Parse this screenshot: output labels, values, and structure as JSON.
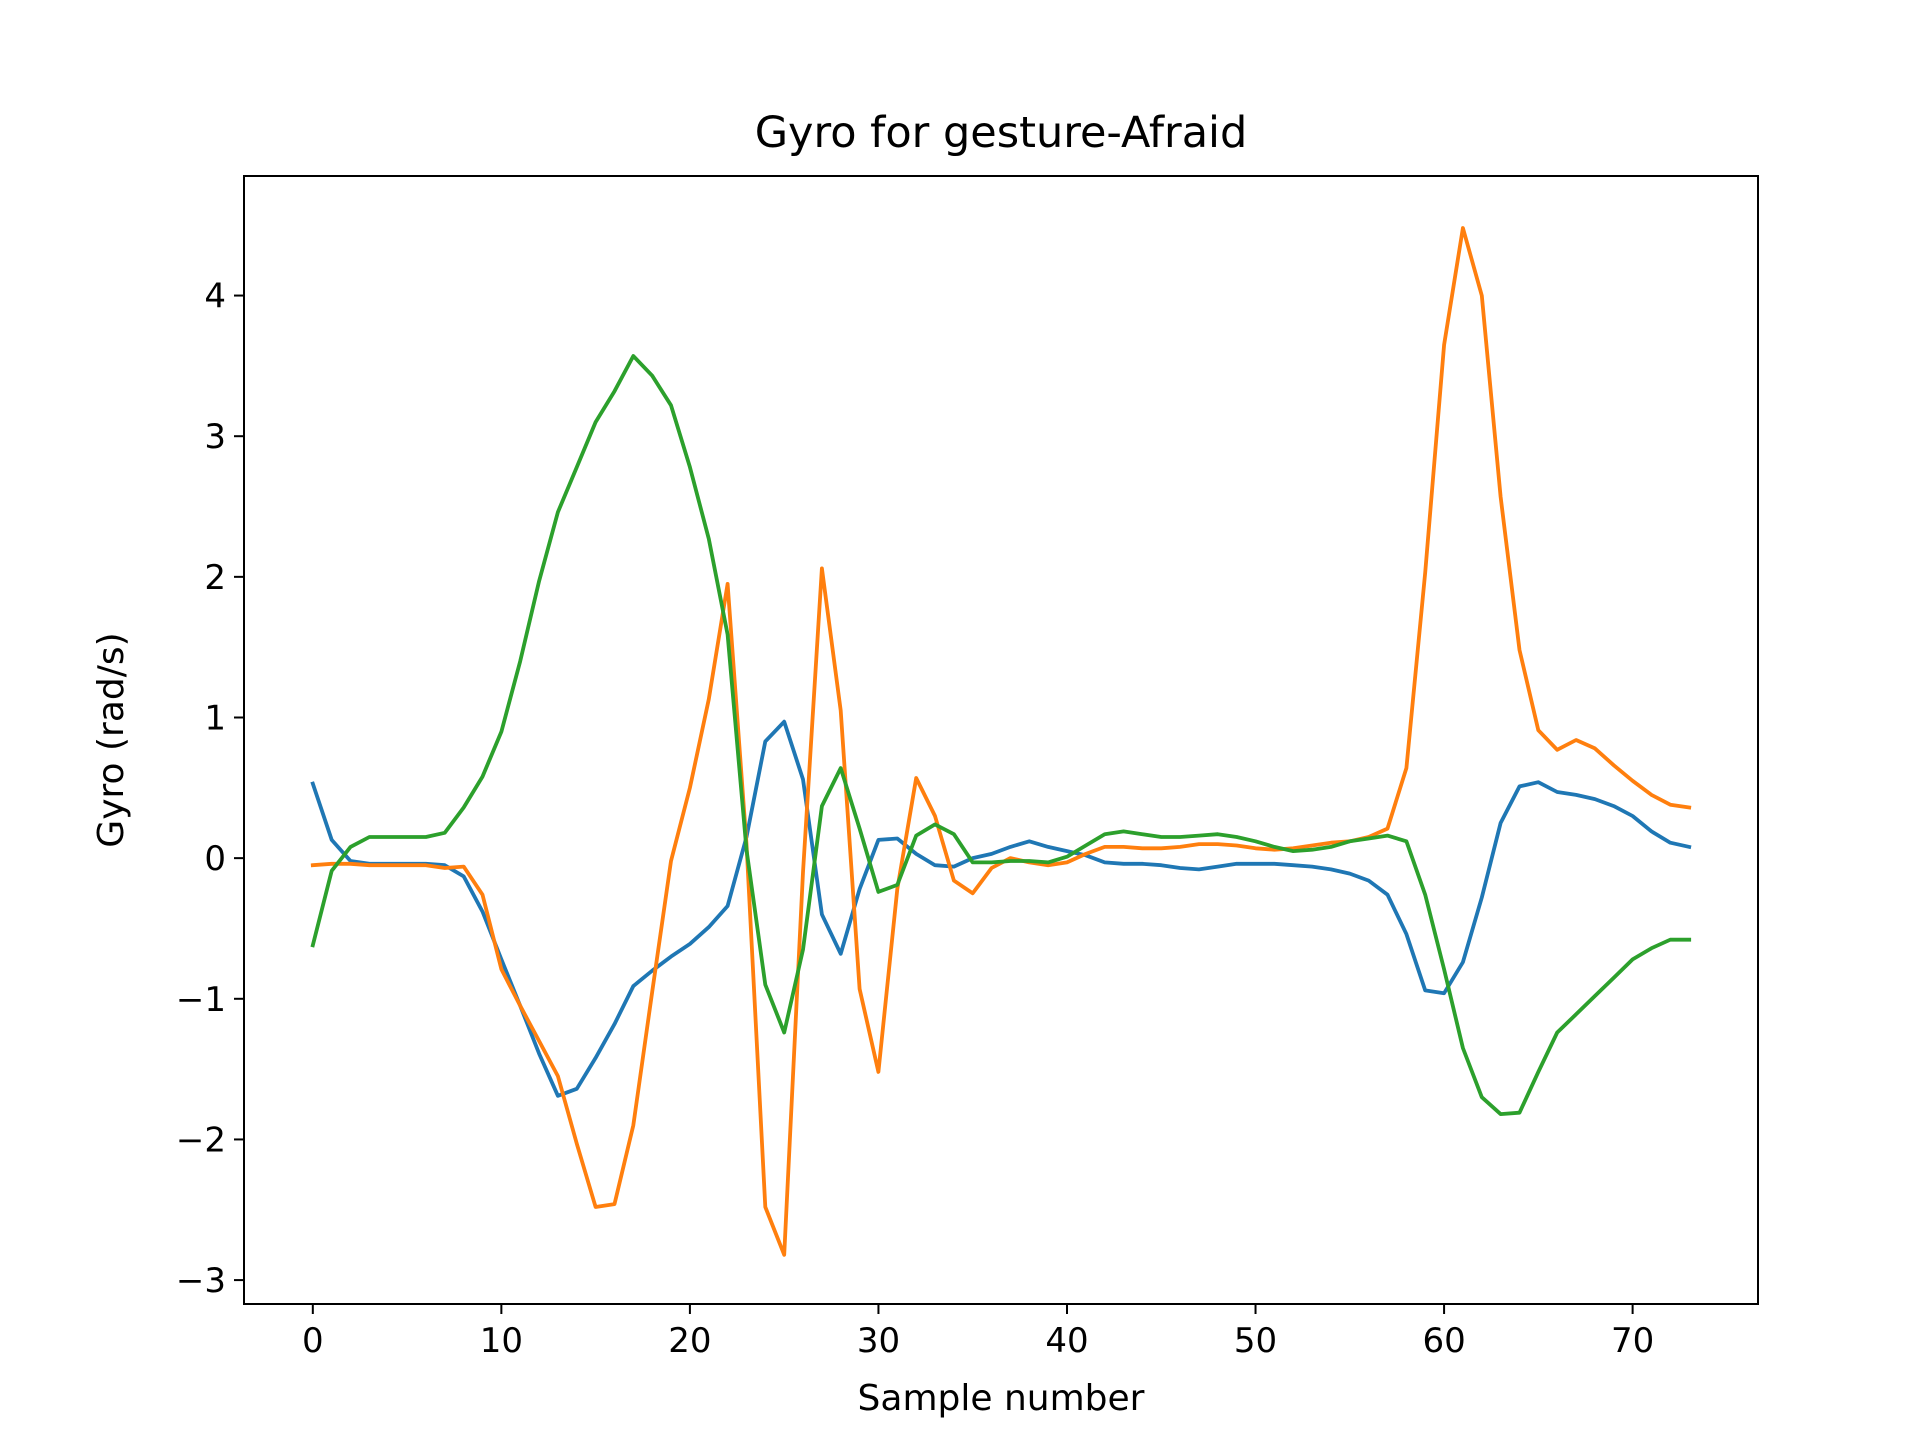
{
  "chart_data": {
    "type": "line",
    "title": "Gyro for gesture-Afraid",
    "xlabel": "Sample number",
    "ylabel": "Gyro  (rad/s)",
    "xlim": [
      -3.65,
      76.65
    ],
    "ylim": [
      -3.17,
      4.85
    ],
    "xticks": [
      0,
      10,
      20,
      30,
      40,
      50,
      60,
      70
    ],
    "xtick_labels": [
      "0",
      "10",
      "20",
      "30",
      "40",
      "50",
      "60",
      "70"
    ],
    "yticks": [
      -3,
      -2,
      -1,
      0,
      1,
      2,
      3,
      4
    ],
    "ytick_labels": [
      "−3",
      "−2",
      "−1",
      "0",
      "1",
      "2",
      "3",
      "4"
    ],
    "grid": false,
    "x": [
      0,
      1,
      2,
      3,
      4,
      5,
      6,
      7,
      8,
      9,
      10,
      11,
      12,
      13,
      14,
      15,
      16,
      17,
      18,
      19,
      20,
      21,
      22,
      23,
      24,
      25,
      26,
      27,
      28,
      29,
      30,
      31,
      32,
      33,
      34,
      35,
      36,
      37,
      38,
      39,
      40,
      41,
      42,
      43,
      44,
      45,
      46,
      47,
      48,
      49,
      50,
      51,
      52,
      53,
      54,
      55,
      56,
      57,
      58,
      59,
      60,
      61,
      62,
      63,
      64,
      65,
      66,
      67,
      68,
      69,
      70,
      71,
      72,
      73
    ],
    "series": [
      {
        "color": "#1f77b4",
        "values": [
          0.53,
          0.13,
          -0.02,
          -0.04,
          -0.04,
          -0.04,
          -0.04,
          -0.05,
          -0.13,
          -0.38,
          -0.72,
          -1.05,
          -1.39,
          -1.69,
          -1.64,
          -1.42,
          -1.18,
          -0.91,
          -0.8,
          -0.7,
          -0.61,
          -0.49,
          -0.34,
          0.15,
          0.83,
          0.97,
          0.56,
          -0.4,
          -0.68,
          -0.22,
          0.13,
          0.14,
          0.03,
          -0.05,
          -0.06,
          0.0,
          0.03,
          0.08,
          0.12,
          0.08,
          0.05,
          0.02,
          -0.03,
          -0.04,
          -0.04,
          -0.05,
          -0.07,
          -0.08,
          -0.06,
          -0.04,
          -0.04,
          -0.04,
          -0.05,
          -0.06,
          -0.08,
          -0.11,
          -0.16,
          -0.26,
          -0.54,
          -0.94,
          -0.96,
          -0.74,
          -0.28,
          0.25,
          0.51,
          0.54,
          0.47,
          0.45,
          0.42,
          0.37,
          0.3,
          0.19,
          0.11,
          0.08
        ]
      },
      {
        "color": "#ff7f0e",
        "values": [
          -0.05,
          -0.04,
          -0.04,
          -0.05,
          -0.05,
          -0.05,
          -0.05,
          -0.07,
          -0.06,
          -0.26,
          -0.79,
          -1.05,
          -1.3,
          -1.55,
          -2.03,
          -2.48,
          -2.46,
          -1.9,
          -0.95,
          -0.02,
          0.5,
          1.13,
          1.95,
          0.1,
          -2.48,
          -2.82,
          -0.1,
          2.06,
          1.05,
          -0.93,
          -1.52,
          -0.22,
          0.57,
          0.3,
          -0.16,
          -0.25,
          -0.07,
          0.0,
          -0.03,
          -0.05,
          -0.03,
          0.03,
          0.08,
          0.08,
          0.07,
          0.07,
          0.08,
          0.1,
          0.1,
          0.09,
          0.07,
          0.06,
          0.07,
          0.09,
          0.11,
          0.12,
          0.15,
          0.21,
          0.64,
          2.03,
          3.65,
          4.48,
          4.0,
          2.57,
          1.48,
          0.91,
          0.77,
          0.84,
          0.78,
          0.66,
          0.55,
          0.45,
          0.38,
          0.36
        ]
      },
      {
        "color": "#2ca02c",
        "values": [
          -0.62,
          -0.09,
          0.08,
          0.15,
          0.15,
          0.15,
          0.15,
          0.18,
          0.36,
          0.58,
          0.9,
          1.4,
          1.97,
          2.46,
          2.78,
          3.1,
          3.32,
          3.57,
          3.43,
          3.22,
          2.78,
          2.27,
          1.59,
          0.06,
          -0.9,
          -1.24,
          -0.65,
          0.37,
          0.64,
          0.21,
          -0.24,
          -0.19,
          0.16,
          0.24,
          0.17,
          -0.03,
          -0.03,
          -0.02,
          -0.02,
          -0.03,
          0.01,
          0.09,
          0.17,
          0.19,
          0.17,
          0.15,
          0.15,
          0.16,
          0.17,
          0.15,
          0.12,
          0.08,
          0.05,
          0.06,
          0.08,
          0.12,
          0.14,
          0.16,
          0.12,
          -0.26,
          -0.79,
          -1.35,
          -1.7,
          -1.82,
          -1.81,
          -1.52,
          -1.24,
          -1.11,
          -0.98,
          -0.85,
          -0.72,
          -0.64,
          -0.58,
          -0.58
        ]
      }
    ]
  }
}
